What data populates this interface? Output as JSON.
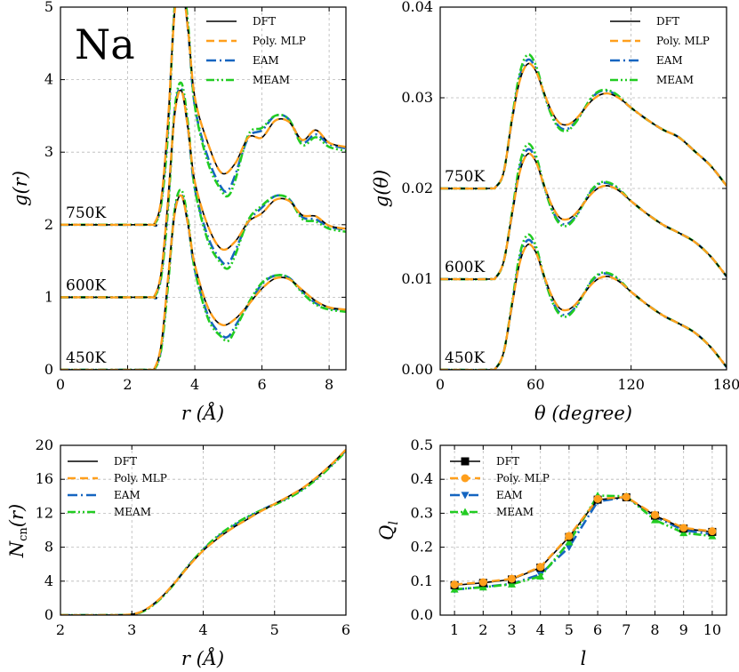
{
  "colors": {
    "DFT": "#000000",
    "Poly. MLP": "#ff9f1c",
    "EAM": "#1565c0",
    "MEAM": "#22cc22"
  },
  "chart_data": [
    {
      "id": "gr",
      "type": "line",
      "panel_label": "Na",
      "xlabel": "r (Å)",
      "ylabel": "g(r)",
      "xlim": [
        0,
        8.5
      ],
      "ylim": [
        0,
        5
      ],
      "xticks": [
        "0",
        "2",
        "4",
        "6",
        "8"
      ],
      "yticks": [
        "0",
        "1",
        "2",
        "3",
        "4",
        "5"
      ],
      "temperatures": [
        "750K",
        "600K",
        "450K"
      ],
      "offsets": [
        2,
        1,
        0
      ],
      "legend": [
        "DFT",
        "Poly. MLP",
        "EAM",
        "MEAM"
      ],
      "series": [
        {
          "name": "DFT",
          "temperature": "450K",
          "x": [
            2.6,
            2.8,
            3.0,
            3.2,
            3.4,
            3.6,
            3.8,
            4.0,
            4.4,
            4.8,
            5.2,
            5.6,
            6.0,
            6.4,
            6.8,
            7.2,
            7.6,
            8.0,
            8.5
          ],
          "y": [
            0,
            0.02,
            0.35,
            1.25,
            2.15,
            2.4,
            2.0,
            1.45,
            0.85,
            0.62,
            0.7,
            0.9,
            1.12,
            1.26,
            1.25,
            1.1,
            0.95,
            0.86,
            0.83
          ]
        },
        {
          "name": "EAM",
          "temperature": "450K",
          "x": [
            2.6,
            2.8,
            3.0,
            3.2,
            3.4,
            3.6,
            3.8,
            4.0,
            4.4,
            4.8,
            5.0,
            5.2,
            5.6,
            6.0,
            6.4,
            6.8,
            7.2,
            7.6,
            8.0,
            8.5
          ],
          "y": [
            0,
            0.01,
            0.3,
            1.2,
            2.18,
            2.42,
            2.0,
            1.38,
            0.74,
            0.48,
            0.46,
            0.6,
            0.9,
            1.18,
            1.3,
            1.27,
            1.08,
            0.92,
            0.85,
            0.82
          ]
        },
        {
          "name": "MEAM",
          "temperature": "450K",
          "x": [
            2.6,
            2.8,
            3.0,
            3.2,
            3.4,
            3.6,
            3.8,
            4.0,
            4.4,
            4.8,
            5.0,
            5.2,
            5.6,
            6.0,
            6.4,
            6.8,
            7.2,
            7.6,
            8.0,
            8.5
          ],
          "y": [
            0,
            0.01,
            0.28,
            1.15,
            2.2,
            2.48,
            2.05,
            1.38,
            0.7,
            0.45,
            0.4,
            0.55,
            0.92,
            1.2,
            1.3,
            1.27,
            1.06,
            0.9,
            0.83,
            0.8
          ]
        }
      ]
    },
    {
      "id": "ga",
      "type": "line",
      "xlabel": "θ (degree)",
      "ylabel": "g(θ)",
      "xlim": [
        0,
        180
      ],
      "ylim": [
        0,
        0.04
      ],
      "xticks": [
        "0",
        "60",
        "120",
        "180"
      ],
      "yticks": [
        "0.00",
        "0.01",
        "0.02",
        "0.03",
        "0.04"
      ],
      "temperatures": [
        "750K",
        "600K",
        "450K"
      ],
      "offsets": [
        0.02,
        0.01,
        0
      ],
      "legend": [
        "DFT",
        "Poly. MLP",
        "EAM",
        "MEAM"
      ],
      "series": [
        {
          "name": "DFT",
          "temperature": "450K",
          "x": [
            30,
            35,
            40,
            45,
            50,
            55,
            60,
            65,
            70,
            75,
            80,
            85,
            90,
            95,
            100,
            105,
            110,
            115,
            120,
            130,
            140,
            150,
            160,
            170,
            180
          ],
          "y": [
            0,
            0.0002,
            0.002,
            0.007,
            0.0118,
            0.0138,
            0.013,
            0.0105,
            0.0082,
            0.0068,
            0.0066,
            0.0072,
            0.0083,
            0.0094,
            0.0101,
            0.0103,
            0.01,
            0.0094,
            0.0086,
            0.0072,
            0.006,
            0.0051,
            0.0041,
            0.0025,
            0.0003
          ]
        },
        {
          "name": "EAM",
          "temperature": "450K",
          "x": [
            30,
            35,
            40,
            45,
            50,
            55,
            60,
            65,
            70,
            75,
            80,
            85,
            90,
            95,
            100,
            105,
            110,
            115,
            120,
            130,
            140,
            150,
            160,
            170,
            180
          ],
          "y": [
            0,
            0.0002,
            0.002,
            0.007,
            0.0123,
            0.0143,
            0.0133,
            0.0104,
            0.0078,
            0.0063,
            0.0061,
            0.0069,
            0.0083,
            0.0097,
            0.0105,
            0.0106,
            0.0102,
            0.0094,
            0.0086,
            0.0072,
            0.006,
            0.0051,
            0.0041,
            0.0025,
            0.0003
          ]
        },
        {
          "name": "MEAM",
          "temperature": "450K",
          "x": [
            30,
            35,
            40,
            45,
            50,
            55,
            60,
            65,
            70,
            75,
            80,
            85,
            90,
            95,
            100,
            105,
            110,
            115,
            120,
            130,
            140,
            150,
            160,
            170,
            180
          ],
          "y": [
            0,
            0.0002,
            0.002,
            0.0072,
            0.0127,
            0.0149,
            0.0137,
            0.0105,
            0.0077,
            0.0061,
            0.0059,
            0.0068,
            0.0083,
            0.0098,
            0.0106,
            0.0107,
            0.0103,
            0.0095,
            0.0086,
            0.0072,
            0.006,
            0.0051,
            0.0041,
            0.0025,
            0.0003
          ]
        }
      ]
    },
    {
      "id": "ncn",
      "type": "line",
      "xlabel": "r (Å)",
      "ylabel": "Ncn(r)",
      "xlim": [
        2,
        6
      ],
      "ylim": [
        0,
        20
      ],
      "xticks": [
        "2",
        "3",
        "4",
        "5",
        "6"
      ],
      "yticks": [
        "0",
        "4",
        "8",
        "12",
        "16",
        "20"
      ],
      "legend": [
        "DFT",
        "Poly. MLP",
        "EAM",
        "MEAM"
      ],
      "series": [
        {
          "name": "DFT",
          "x": [
            2,
            2.6,
            3.0,
            3.2,
            3.4,
            3.6,
            3.8,
            4.0,
            4.2,
            4.4,
            4.6,
            4.8,
            5.0,
            5.2,
            5.4,
            5.6,
            5.8,
            6.0
          ],
          "y": [
            0,
            0,
            0.1,
            0.7,
            2.0,
            3.8,
            5.8,
            7.6,
            9.0,
            10.2,
            11.2,
            12.2,
            13.1,
            14.0,
            15.0,
            16.3,
            17.8,
            19.5
          ]
        },
        {
          "name": "EAM",
          "x": [
            2,
            2.6,
            3.0,
            3.2,
            3.4,
            3.6,
            3.8,
            4.0,
            4.2,
            4.4,
            4.6,
            4.8,
            5.0,
            5.2,
            5.4,
            5.6,
            5.8,
            6.0
          ],
          "y": [
            0,
            0,
            0.08,
            0.65,
            1.95,
            3.8,
            5.9,
            7.7,
            9.2,
            10.4,
            11.4,
            12.3,
            13.1,
            13.9,
            14.9,
            16.2,
            17.7,
            19.4
          ]
        },
        {
          "name": "MEAM",
          "x": [
            2,
            2.6,
            3.0,
            3.2,
            3.4,
            3.6,
            3.8,
            4.0,
            4.2,
            4.4,
            4.6,
            4.8,
            5.0,
            5.2,
            5.4,
            5.6,
            5.8,
            6.0
          ],
          "y": [
            0,
            0,
            0.08,
            0.62,
            1.9,
            3.75,
            5.9,
            7.75,
            9.3,
            10.5,
            11.5,
            12.3,
            13.0,
            13.8,
            14.8,
            16.1,
            17.6,
            19.3
          ]
        }
      ]
    },
    {
      "id": "ql",
      "type": "line",
      "xlabel": "l",
      "ylabel": "Ql",
      "xlim": [
        0.5,
        10.5
      ],
      "ylim": [
        0,
        0.5
      ],
      "xticks": [
        "1",
        "2",
        "3",
        "4",
        "5",
        "6",
        "7",
        "8",
        "9",
        "10"
      ],
      "yticks": [
        "0.0",
        "0.1",
        "0.2",
        "0.3",
        "0.4",
        "0.5"
      ],
      "legend": [
        "DFT",
        "Poly. MLP",
        "EAM",
        "MEAM"
      ],
      "series": [
        {
          "name": "DFT",
          "marker": "square",
          "x": [
            1,
            2,
            3,
            4,
            5,
            6,
            7,
            8,
            9,
            10
          ],
          "y": [
            0.088,
            0.095,
            0.105,
            0.14,
            0.23,
            0.34,
            0.347,
            0.293,
            0.255,
            0.245
          ]
        },
        {
          "name": "Poly. MLP",
          "marker": "circle",
          "x": [
            1,
            2,
            3,
            4,
            5,
            6,
            7,
            8,
            9,
            10
          ],
          "y": [
            0.09,
            0.097,
            0.107,
            0.142,
            0.233,
            0.342,
            0.348,
            0.295,
            0.257,
            0.247
          ]
        },
        {
          "name": "EAM",
          "marker": "triangle-down",
          "x": [
            1,
            2,
            3,
            4,
            5,
            6,
            7,
            8,
            9,
            10
          ],
          "y": [
            0.075,
            0.083,
            0.092,
            0.12,
            0.2,
            0.335,
            0.347,
            0.29,
            0.25,
            0.238
          ]
        },
        {
          "name": "MEAM",
          "marker": "triangle-up",
          "x": [
            1,
            2,
            3,
            4,
            5,
            6,
            7,
            8,
            9,
            10
          ],
          "y": [
            0.076,
            0.082,
            0.091,
            0.114,
            0.215,
            0.352,
            0.35,
            0.28,
            0.242,
            0.233
          ]
        }
      ]
    }
  ]
}
